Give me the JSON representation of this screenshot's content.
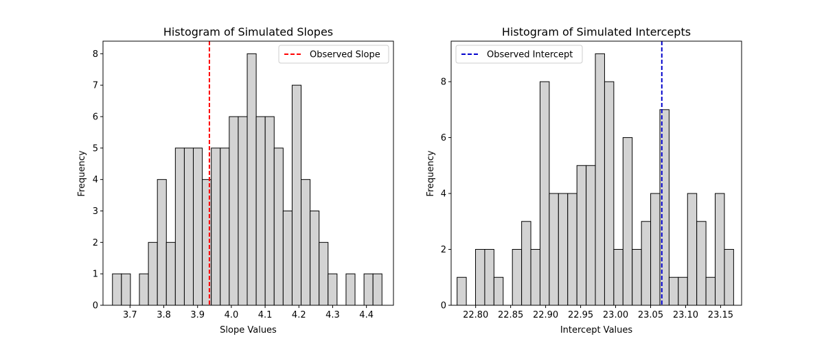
{
  "chart_data": [
    {
      "type": "bar",
      "title": "Histogram of Simulated Slopes",
      "xlabel": "Slope Values",
      "ylabel": "Frequency",
      "xlim": [
        3.62,
        4.48
      ],
      "ylim": [
        0,
        8.4
      ],
      "xticks": [
        3.7,
        3.8,
        3.9,
        4.0,
        4.1,
        4.2,
        4.3,
        4.4
      ],
      "xtick_labels": [
        "3.7",
        "3.8",
        "3.9",
        "4.0",
        "4.1",
        "4.2",
        "4.3",
        "4.4"
      ],
      "yticks": [
        0,
        1,
        2,
        3,
        4,
        5,
        6,
        7,
        8
      ],
      "ytick_labels": [
        "0",
        "1",
        "2",
        "3",
        "4",
        "5",
        "6",
        "7",
        "8"
      ],
      "bin_start": 3.648,
      "bin_width": 0.0266,
      "counts": [
        1,
        1,
        0,
        1,
        2,
        4,
        2,
        5,
        5,
        5,
        4,
        5,
        5,
        6,
        6,
        8,
        6,
        6,
        5,
        3,
        7,
        4,
        3,
        2,
        1,
        0,
        1,
        0,
        1,
        1
      ],
      "bar_color": "#d3d3d3",
      "edge_color": "#000000",
      "observed_line": {
        "label": "Observed Slope",
        "x": 3.935,
        "color": "#ff0000",
        "style": "dashed"
      },
      "legend_position": "upper right",
      "grid": false
    },
    {
      "type": "bar",
      "title": "Histogram of Simulated Intercepts",
      "xlabel": "Intercept Values",
      "ylabel": "Frequency",
      "xlim": [
        22.765,
        23.18
      ],
      "ylim": [
        0,
        9.45
      ],
      "xticks": [
        22.8,
        22.85,
        22.9,
        22.95,
        23.0,
        23.05,
        23.1,
        23.15
      ],
      "xtick_labels": [
        "22.80",
        "22.85",
        "22.90",
        "22.95",
        "23.00",
        "23.05",
        "23.10",
        "23.15"
      ],
      "yticks": [
        0,
        2,
        4,
        6,
        8
      ],
      "ytick_labels": [
        "0",
        "2",
        "4",
        "6",
        "8"
      ],
      "bin_start": 22.7735,
      "bin_width": 0.01317,
      "counts": [
        1,
        0,
        2,
        2,
        1,
        0,
        2,
        3,
        2,
        8,
        4,
        4,
        4,
        5,
        5,
        9,
        8,
        2,
        6,
        2,
        3,
        4,
        7,
        1,
        1,
        4,
        3,
        1,
        4,
        2
      ],
      "bar_color": "#d3d3d3",
      "edge_color": "#000000",
      "observed_line": {
        "label": "Observed Intercept",
        "x": 23.066,
        "color": "#0000cc",
        "style": "dashed"
      },
      "legend_position": "upper left",
      "grid": false
    }
  ]
}
